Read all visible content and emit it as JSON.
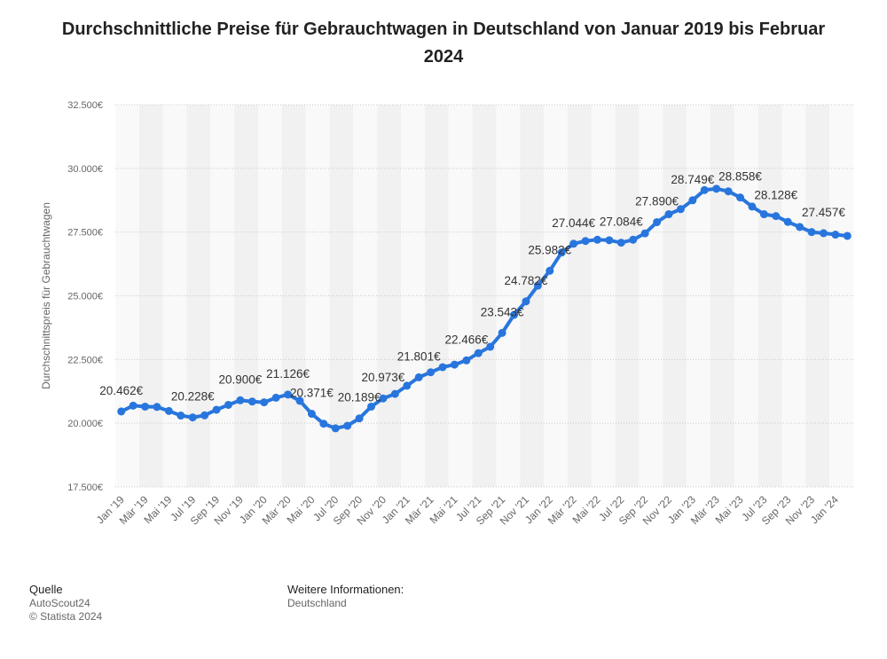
{
  "chart_data": {
    "type": "line",
    "title": "Durchschnittliche Preise für Gebrauchtwagen in Deutschland von Januar 2019 bis Februar 2024",
    "ylabel": "Durchschnittspreis für Gebrauchtwagen",
    "xlabel": "",
    "ylim": [
      17500,
      32500
    ],
    "yticks": [
      17500,
      20000,
      22500,
      25000,
      27500,
      30000,
      32500
    ],
    "ytick_labels": [
      "17.500€",
      "20.000€",
      "22.500€",
      "25.000€",
      "27.500€",
      "30.000€",
      "32.500€"
    ],
    "grid": true,
    "series_color": "#2876dd",
    "x": [
      "Jan '19",
      "Feb '19",
      "Mär '19",
      "Apr '19",
      "Mai '19",
      "Jun '19",
      "Jul '19",
      "Aug '19",
      "Sep '19",
      "Okt '19",
      "Nov '19",
      "Dez '19",
      "Jan '20",
      "Feb '20",
      "Mär '20",
      "Apr '20",
      "Mai '20",
      "Jun '20",
      "Jul '20",
      "Aug '20",
      "Sep '20",
      "Okt '20",
      "Nov '20",
      "Dez '20",
      "Jan '21",
      "Feb '21",
      "Mär '21",
      "Apr '21",
      "Mai '21",
      "Jun '21",
      "Jul '21",
      "Aug '21",
      "Sep '21",
      "Okt '21",
      "Nov '21",
      "Dez '21",
      "Jan '22",
      "Feb '22",
      "Mär '22",
      "Apr '22",
      "Mai '22",
      "Jun '22",
      "Jul '22",
      "Aug '22",
      "Sep '22",
      "Okt '22",
      "Nov '22",
      "Dez '22",
      "Jan '23",
      "Feb '23",
      "Mär '23",
      "Apr '23",
      "Mai '23",
      "Jun '23",
      "Jul '23",
      "Aug '23",
      "Sep '23",
      "Okt '23",
      "Nov '23",
      "Dez '23",
      "Jan '24",
      "Feb '24"
    ],
    "x_tick_labels": [
      "Jan '19",
      "Mär '19",
      "Mai '19",
      "Jul '19",
      "Sep '19",
      "Nov '19",
      "Jan '20",
      "Mär '20",
      "Mai '20",
      "Jul '20",
      "Sep '20",
      "Nov '20",
      "Jan '21",
      "Mär '21",
      "Mai '21",
      "Jul '21",
      "Sep '21",
      "Nov '21",
      "Jan '22",
      "Mär '22",
      "Mai '22",
      "Jul '22",
      "Sep '22",
      "Nov '22",
      "Jan '23",
      "Mär '23",
      "Mai '23",
      "Jul '23",
      "Sep '23",
      "Nov '23",
      "Jan '24"
    ],
    "values": [
      20462,
      20690,
      20650,
      20640,
      20480,
      20300,
      20228,
      20310,
      20530,
      20720,
      20900,
      20850,
      20820,
      21000,
      21126,
      20880,
      20371,
      19980,
      19800,
      19900,
      20189,
      20650,
      20973,
      21150,
      21470,
      21801,
      22000,
      22200,
      22300,
      22466,
      22750,
      23000,
      23543,
      24250,
      24782,
      25400,
      25982,
      26700,
      27044,
      27150,
      27200,
      27180,
      27084,
      27200,
      27450,
      27890,
      28200,
      28400,
      28749,
      29150,
      29200,
      29100,
      28858,
      28500,
      28200,
      28128,
      27900,
      27700,
      27500,
      27457,
      27400,
      27350
    ],
    "data_labels": [
      {
        "index": 0,
        "text": "20.462€"
      },
      {
        "index": 6,
        "text": "20.228€"
      },
      {
        "index": 10,
        "text": "20.900€"
      },
      {
        "index": 14,
        "text": "21.126€"
      },
      {
        "index": 16,
        "text": "20.371€"
      },
      {
        "index": 20,
        "text": "20.189€"
      },
      {
        "index": 22,
        "text": "20.973€"
      },
      {
        "index": 25,
        "text": "21.801€"
      },
      {
        "index": 29,
        "text": "22.466€"
      },
      {
        "index": 32,
        "text": "23.543€"
      },
      {
        "index": 34,
        "text": "24.782€"
      },
      {
        "index": 36,
        "text": "25.982€"
      },
      {
        "index": 38,
        "text": "27.044€"
      },
      {
        "index": 42,
        "text": "27.084€"
      },
      {
        "index": 45,
        "text": "27.890€"
      },
      {
        "index": 48,
        "text": "28.749€"
      },
      {
        "index": 52,
        "text": "28.858€"
      },
      {
        "index": 55,
        "text": "28.128€"
      },
      {
        "index": 59,
        "text": "27.457€"
      }
    ]
  },
  "footer": {
    "source_heading": "Quelle",
    "source_lines": [
      "AutoScout24",
      "© Statista 2024"
    ],
    "info_heading": "Weitere Informationen:",
    "info_lines": [
      "Deutschland"
    ]
  }
}
